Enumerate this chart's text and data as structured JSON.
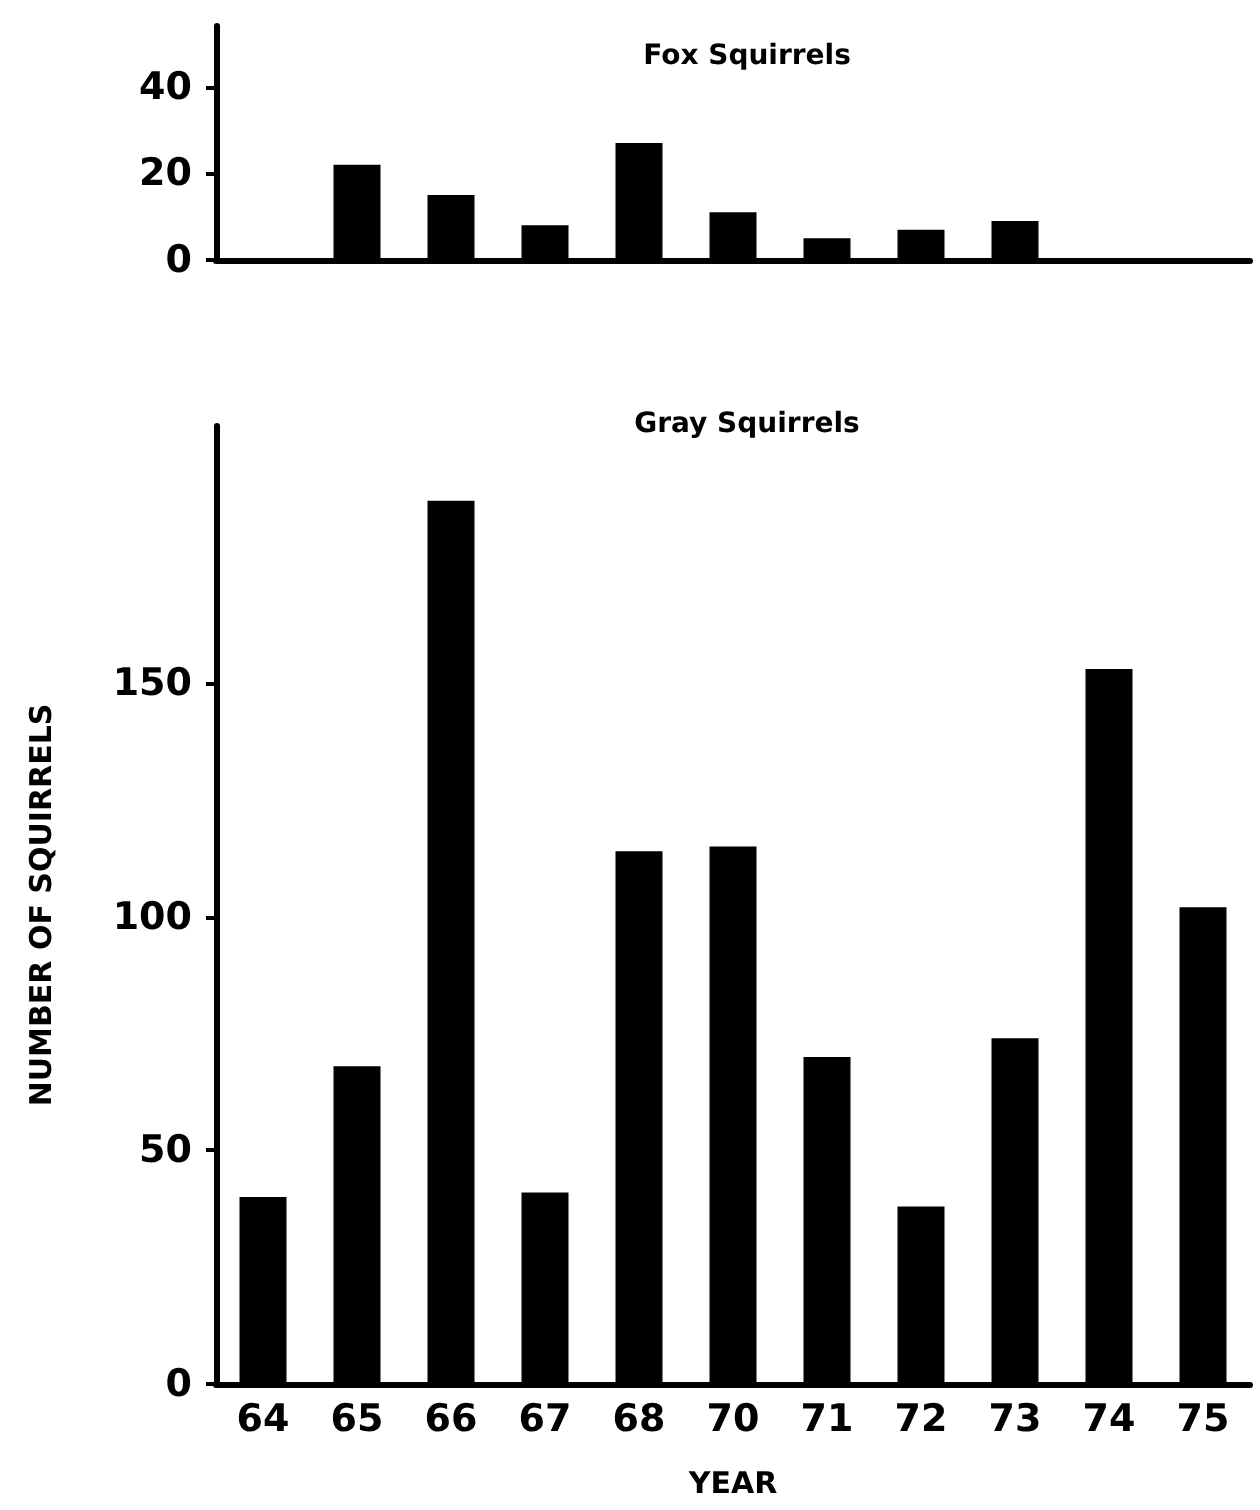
{
  "chart_data": [
    {
      "type": "bar",
      "title": "Fox Squirrels",
      "categories": [
        "64",
        "65",
        "66",
        "67",
        "68",
        "70",
        "71",
        "72",
        "73",
        "74",
        "75"
      ],
      "values": [
        0,
        22,
        15,
        8,
        27,
        11,
        5,
        7,
        9,
        0,
        0
      ],
      "color": "#000000",
      "ylim": [
        0,
        54
      ],
      "yticks": [
        0,
        20,
        40
      ],
      "tick_labels": "y"
    },
    {
      "type": "bar",
      "title": "Gray Squirrels",
      "xlabel": "YEAR",
      "ylabel": "NUMBER OF SQUIRRELS",
      "categories": [
        "64",
        "65",
        "66",
        "67",
        "68",
        "70",
        "71",
        "72",
        "73",
        "74",
        "75"
      ],
      "values": [
        40,
        68,
        189,
        41,
        114,
        115,
        70,
        38,
        74,
        153,
        102
      ],
      "color": "#000000",
      "ylim": [
        0,
        205
      ],
      "yticks": [
        0,
        50,
        100,
        150
      ]
    }
  ]
}
